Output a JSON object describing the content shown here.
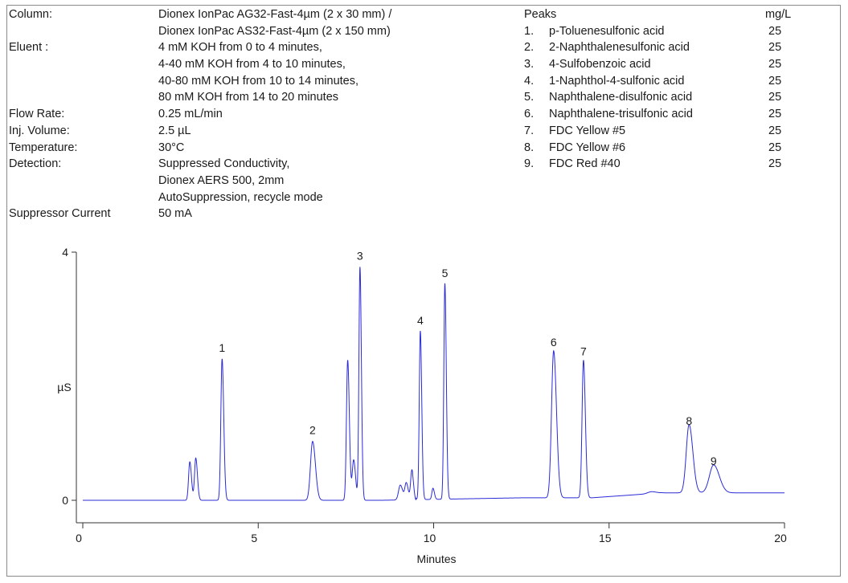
{
  "conditions": [
    {
      "label": "Column:",
      "values": [
        "Dionex IonPac AG32-Fast-4µm (2 x 30 mm) /",
        "Dionex IonPac AS32-Fast-4µm (2 x 150 mm)"
      ]
    },
    {
      "label": "Eluent :",
      "values": [
        "4 mM KOH from 0 to 4 minutes,",
        "4-40 mM KOH from 4 to 10 minutes,",
        "40-80 mM KOH from 10 to 14 minutes,",
        "80 mM KOH from 14 to 20 minutes"
      ]
    },
    {
      "label": "Flow Rate:",
      "values": [
        "0.25 mL/min"
      ]
    },
    {
      "label": "Inj. Volume:",
      "values": [
        "2.5 µL"
      ]
    },
    {
      "label": "Temperature:",
      "values": [
        "30°C"
      ]
    },
    {
      "label": "Detection:",
      "values": [
        "Suppressed Conductivity,",
        "Dionex AERS 500, 2mm",
        "AutoSuppression, recycle mode"
      ]
    },
    {
      "label": "Suppressor Current",
      "values": [
        "50 mA"
      ]
    }
  ],
  "peaks_table": {
    "header": "Peaks",
    "unit": "mg/L",
    "items": [
      {
        "num": "1.",
        "name": "p-Toluenesulfonic  acid",
        "conc": "25"
      },
      {
        "num": "2.",
        "name": "2-Naphthalenesulfonic  acid",
        "conc": "25"
      },
      {
        "num": "3.",
        "name": "4-Sulfobenzoic  acid",
        "conc": "25"
      },
      {
        "num": "4.",
        "name": "1-Naphthol-4-sulfonic  acid",
        "conc": "25"
      },
      {
        "num": "5.",
        "name": "Naphthalene-disulfonic  acid",
        "conc": "25"
      },
      {
        "num": "6.",
        "name": "Naphthalene-trisulfonic  acid",
        "conc": "25"
      },
      {
        "num": "7.",
        "name": "FDC  Yellow #5",
        "conc": "25"
      },
      {
        "num": "8.",
        "name": "FDC  Yellow #6",
        "conc": "25"
      },
      {
        "num": "9.",
        "name": "FDC  Red #40",
        "conc": "25"
      }
    ]
  },
  "chart_data": {
    "type": "line",
    "xlabel": "Minutes",
    "ylabel": "µS",
    "xlim": [
      0,
      20
    ],
    "ylim": [
      -0.35,
      4.1
    ],
    "xticks": [
      0,
      5,
      10,
      15,
      20
    ],
    "yticks": [
      0,
      4
    ],
    "line_color": "#2b2bd6",
    "baseline": 0.0,
    "peaks": [
      {
        "label": "",
        "rt": 3.05,
        "height": 0.62,
        "width": 0.035
      },
      {
        "label": "",
        "rt": 3.22,
        "height": 0.68,
        "width": 0.035
      },
      {
        "label": "1",
        "rt": 3.97,
        "height": 2.28,
        "width": 0.035
      },
      {
        "label": "2",
        "rt": 6.55,
        "height": 0.95,
        "width": 0.06
      },
      {
        "label": "",
        "rt": 7.55,
        "height": 2.26,
        "width": 0.035
      },
      {
        "label": "",
        "rt": 7.72,
        "height": 0.65,
        "width": 0.04
      },
      {
        "label": "3",
        "rt": 7.9,
        "height": 3.76,
        "width": 0.03
      },
      {
        "label": "",
        "rt": 9.05,
        "height": 0.24,
        "width": 0.05
      },
      {
        "label": "",
        "rt": 9.22,
        "height": 0.27,
        "width": 0.04
      },
      {
        "label": "",
        "rt": 9.38,
        "height": 0.48,
        "width": 0.035
      },
      {
        "label": "4",
        "rt": 9.62,
        "height": 2.72,
        "width": 0.03
      },
      {
        "label": "",
        "rt": 9.98,
        "height": 0.18,
        "width": 0.03
      },
      {
        "label": "5",
        "rt": 10.32,
        "height": 3.48,
        "width": 0.03
      },
      {
        "label": "6",
        "rt": 13.42,
        "height": 2.37,
        "width": 0.06
      },
      {
        "label": "7",
        "rt": 14.27,
        "height": 2.22,
        "width": 0.04
      },
      {
        "label": "",
        "rt": 16.2,
        "height": 0.03,
        "width": 0.1
      },
      {
        "label": "8",
        "rt": 17.28,
        "height": 1.1,
        "width": 0.08
      },
      {
        "label": "9",
        "rt": 17.98,
        "height": 0.45,
        "width": 0.12
      }
    ]
  }
}
